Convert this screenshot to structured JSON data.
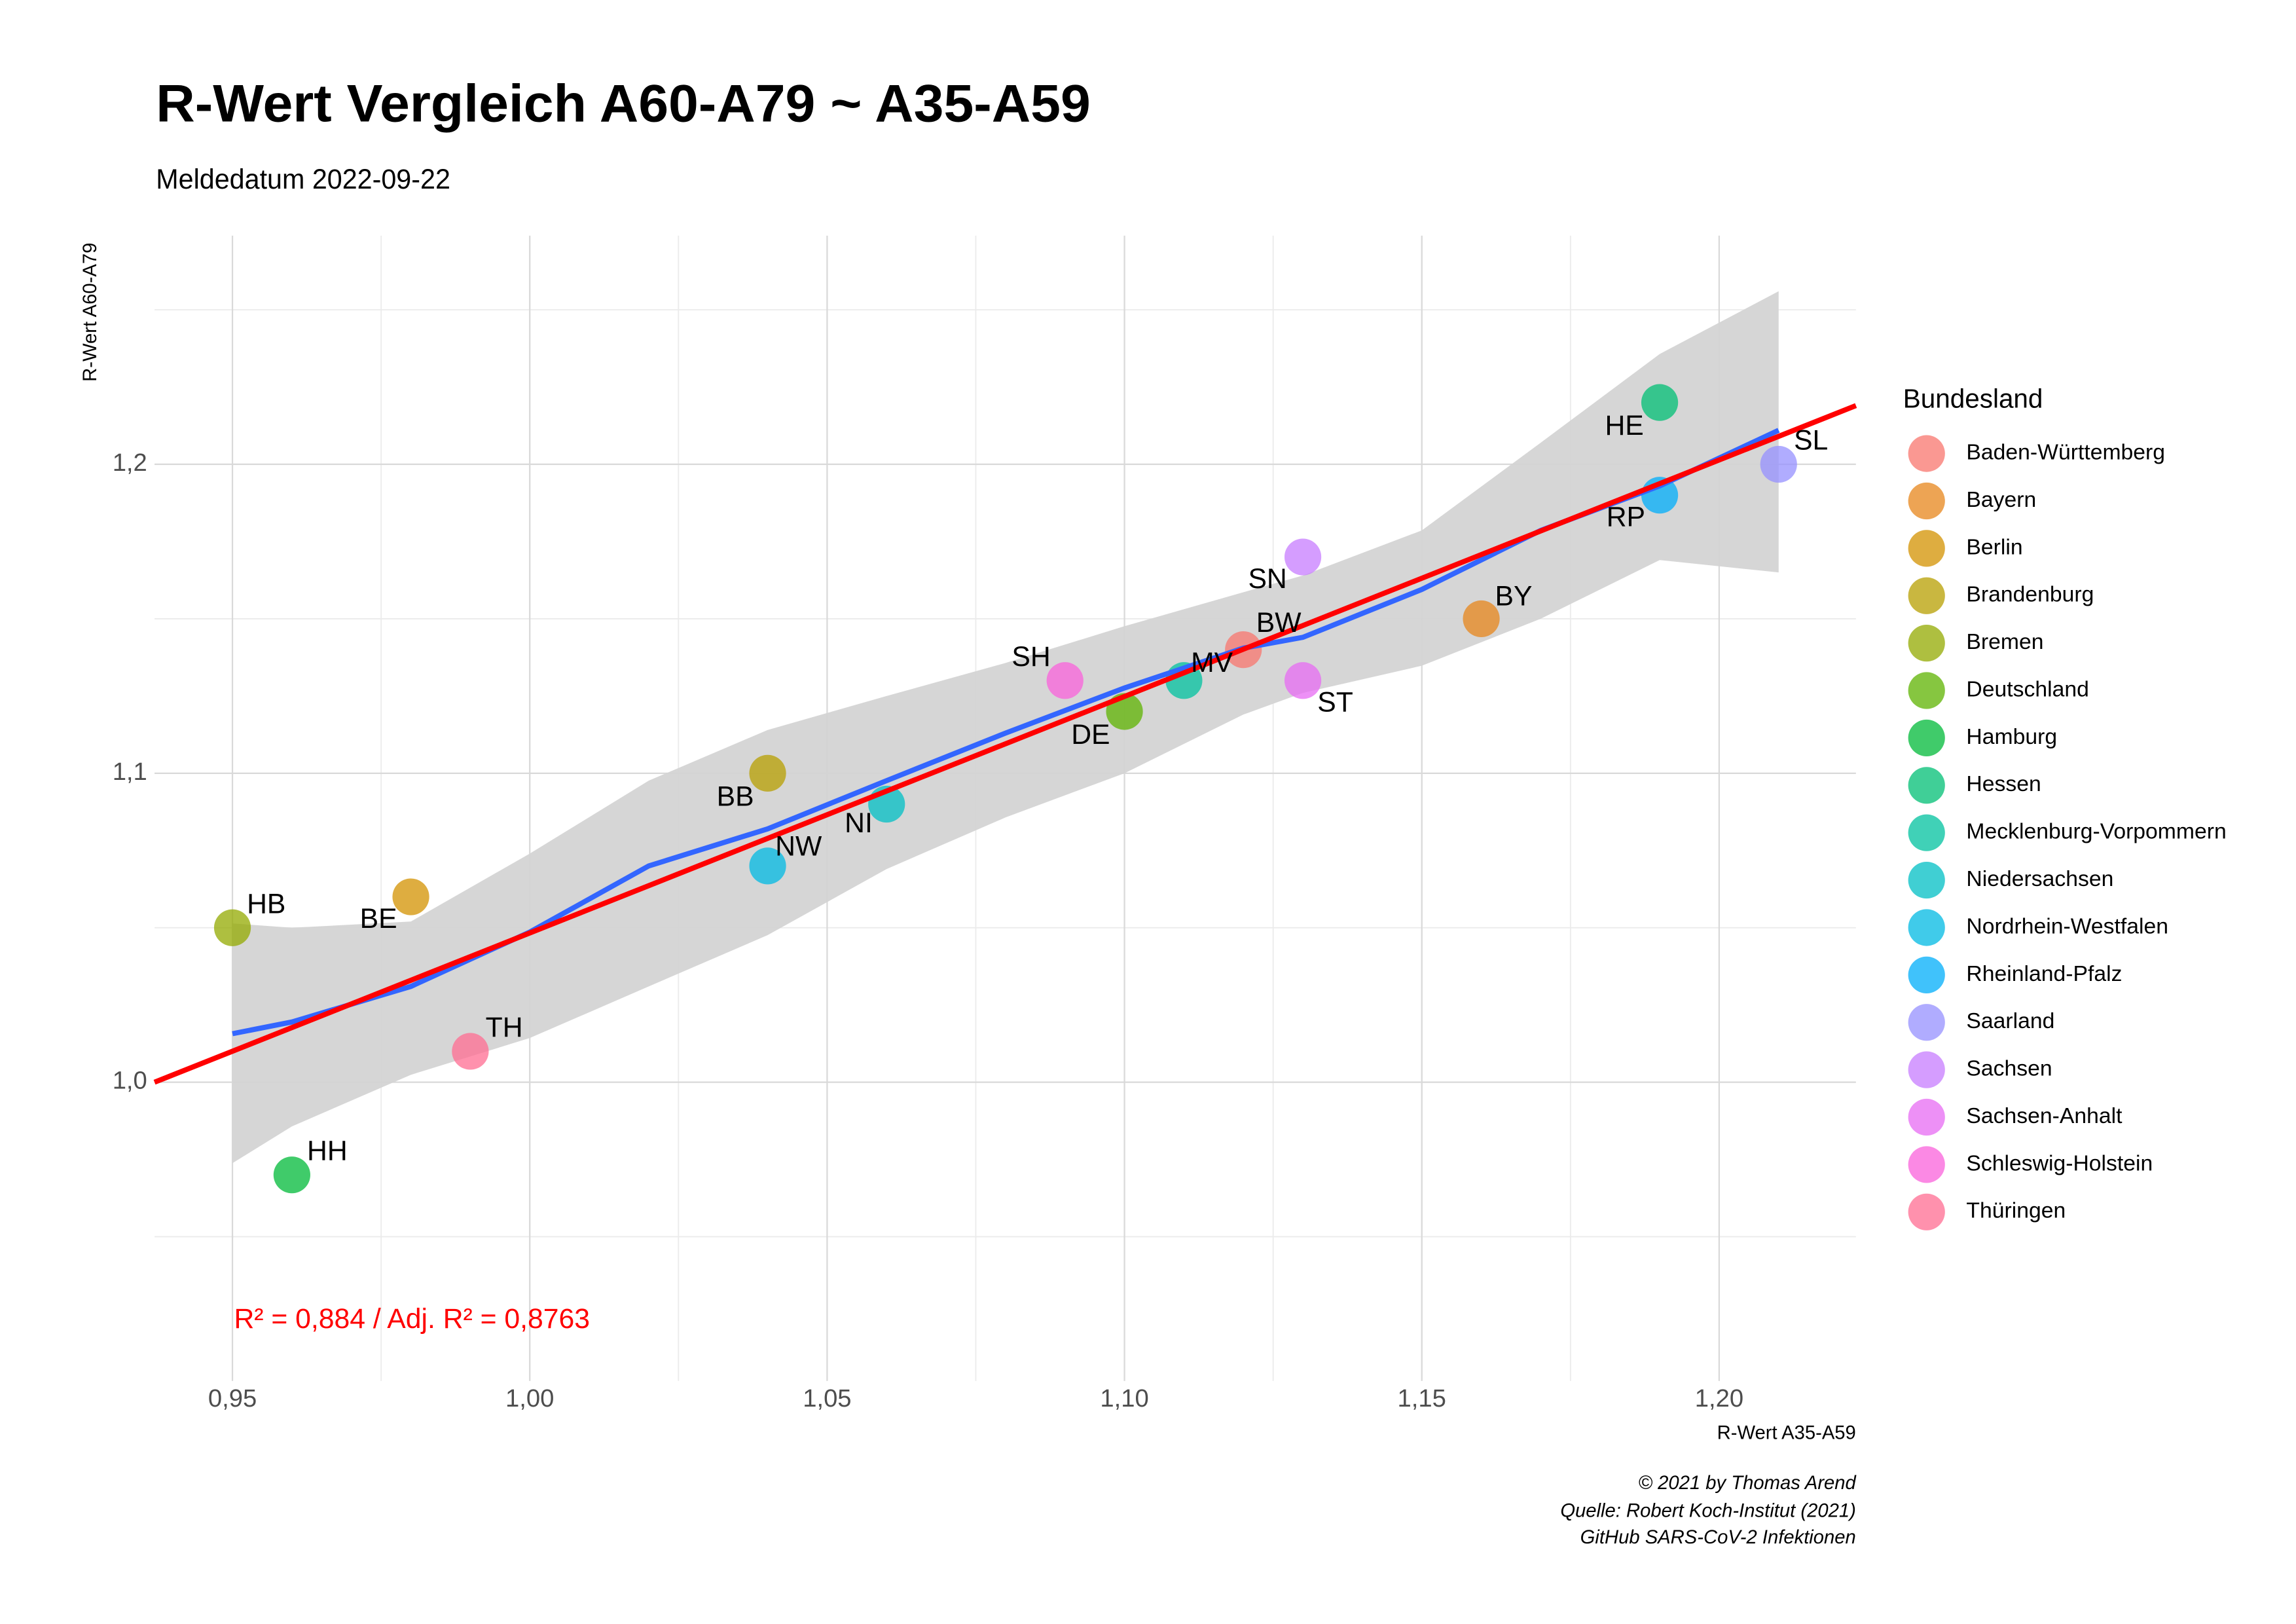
{
  "chart_data": {
    "type": "scatter",
    "title": "R-Wert Vergleich A60-A79 ~ A35-A59",
    "subtitle": "Meldedatum 2022-09-22",
    "x_label": "R-Wert A35-A59",
    "y_label": "R-Wert A60-A79",
    "legend_title": "Bundesland",
    "annotation": "R² = 0,884 / Adj. R² =  0,8763",
    "caption": [
      "© 2021 by Thomas Arend",
      "Quelle: Robert Koch-Institut (2021)",
      "GitHub SARS-CoV-2 Infektionen"
    ],
    "xlim": [
      0.9369,
      1.223
    ],
    "ylim": [
      0.9033,
      1.274
    ],
    "xticks": [
      {
        "value": 0.95,
        "label": "0,95"
      },
      {
        "value": 1.0,
        "label": "1,00"
      },
      {
        "value": 1.05,
        "label": "1,05"
      },
      {
        "value": 1.1,
        "label": "1,10"
      },
      {
        "value": 1.15,
        "label": "1,15"
      },
      {
        "value": 1.2,
        "label": "1,20"
      }
    ],
    "yticks": [
      {
        "value": 1.0,
        "label": "1,0"
      },
      {
        "value": 1.1,
        "label": "1,1"
      },
      {
        "value": 1.2,
        "label": "1,2"
      }
    ],
    "x_minor_grid": [
      0.975,
      1.025,
      1.075,
      1.125,
      1.175
    ],
    "y_minor_grid": [
      0.95,
      1.05,
      1.15,
      1.25
    ],
    "grid": true,
    "legend": "right",
    "series": [
      {
        "name": "Baden-Württemberg",
        "color": "#F8766D",
        "labels": [
          "BW"
        ],
        "x": [
          1.12
        ],
        "values": [
          1.14
        ]
      },
      {
        "name": "Bayern",
        "color": "#E7861B",
        "labels": [
          "BY"
        ],
        "x": [
          1.16
        ],
        "values": [
          1.15
        ]
      },
      {
        "name": "Berlin",
        "color": "#D39200",
        "labels": [
          "BE"
        ],
        "x": [
          0.98
        ],
        "values": [
          1.06
        ]
      },
      {
        "name": "Brandenburg",
        "color": "#B79F00",
        "labels": [
          "BB"
        ],
        "x": [
          1.04
        ],
        "values": [
          1.1
        ]
      },
      {
        "name": "Bremen",
        "color": "#93AA00",
        "labels": [
          "HB"
        ],
        "x": [
          0.95
        ],
        "values": [
          1.05
        ]
      },
      {
        "name": "Deutschland",
        "color": "#5EB300",
        "labels": [
          "DE"
        ],
        "x": [
          1.1
        ],
        "values": [
          1.12
        ]
      },
      {
        "name": "Hamburg",
        "color": "#00BA38",
        "labels": [
          "HH"
        ],
        "x": [
          0.96
        ],
        "values": [
          0.97
        ]
      },
      {
        "name": "Hessen",
        "color": "#00BF74",
        "labels": [
          "HE"
        ],
        "x": [
          1.19
        ],
        "values": [
          1.22
        ]
      },
      {
        "name": "Mecklenburg-Vorpommern",
        "color": "#00C19F",
        "labels": [
          "MV"
        ],
        "x": [
          1.11
        ],
        "values": [
          1.13
        ]
      },
      {
        "name": "Niedersachsen",
        "color": "#00BFC4",
        "labels": [
          "NI"
        ],
        "x": [
          1.06
        ],
        "values": [
          1.09
        ]
      },
      {
        "name": "Nordrhein-Westfalen",
        "color": "#00B9E3",
        "labels": [
          "NW"
        ],
        "x": [
          1.04
        ],
        "values": [
          1.07
        ]
      },
      {
        "name": "Rheinland-Pfalz",
        "color": "#00ADFA",
        "labels": [
          "RP"
        ],
        "x": [
          1.19
        ],
        "values": [
          1.19
        ]
      },
      {
        "name": "Saarland",
        "color": "#9590FF",
        "labels": [
          "SL"
        ],
        "x": [
          1.21
        ],
        "values": [
          1.2
        ]
      },
      {
        "name": "Sachsen",
        "color": "#C77CFF",
        "labels": [
          "SN"
        ],
        "x": [
          1.13
        ],
        "values": [
          1.17
        ]
      },
      {
        "name": "Sachsen-Anhalt",
        "color": "#E76BF3",
        "labels": [
          "ST"
        ],
        "x": [
          1.13
        ],
        "values": [
          1.13
        ]
      },
      {
        "name": "Schleswig-Holstein",
        "color": "#FA62DB",
        "labels": [
          "SH"
        ],
        "x": [
          1.09
        ],
        "values": [
          1.13
        ]
      },
      {
        "name": "Thüringen",
        "color": "#FF6C91",
        "labels": [
          "TH"
        ],
        "x": [
          0.99
        ],
        "values": [
          1.01
        ]
      }
    ],
    "smooth": {
      "color": "#3366FF",
      "band_color": "#d4d4d4",
      "x": [
        0.95,
        0.96,
        0.98,
        1.0,
        1.02,
        1.04,
        1.06,
        1.08,
        1.1,
        1.12,
        1.13,
        1.15,
        1.17,
        1.19,
        1.21
      ],
      "values": [
        1.0157,
        1.0195,
        1.031,
        1.0486,
        1.07,
        1.082,
        1.0976,
        1.113,
        1.1276,
        1.1405,
        1.144,
        1.1595,
        1.1786,
        1.193,
        1.211
      ],
      "upper": [
        1.0514,
        1.05,
        1.052,
        1.074,
        1.0976,
        1.114,
        1.125,
        1.1357,
        1.1476,
        1.1586,
        1.164,
        1.1786,
        1.207,
        1.2357,
        1.256
      ],
      "lower": [
        0.9738,
        0.9857,
        1.0024,
        1.0143,
        1.031,
        1.0476,
        1.069,
        1.0857,
        1.1,
        1.119,
        1.126,
        1.1348,
        1.15,
        1.169,
        1.165
      ]
    },
    "fit_line": {
      "color": "#FF0000",
      "x": [
        0.9369,
        1.223
      ],
      "values": [
        1.0,
        1.219
      ]
    }
  }
}
